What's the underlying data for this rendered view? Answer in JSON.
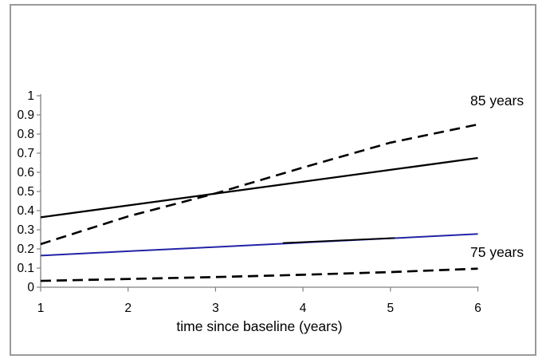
{
  "figure": {
    "background": "#ffffff",
    "border_color": "#9a9a9a",
    "axis_color": "#808080",
    "accent_blue": "#2323a7"
  },
  "chart_data": {
    "type": "line",
    "title": "",
    "xlabel": "time since baseline (years)",
    "ylabel": "",
    "x_range": [
      1,
      6
    ],
    "y_range": [
      0,
      1
    ],
    "grid": false,
    "legend_position": "none (direct line labels at right)",
    "x_ticks": [
      1,
      2,
      3,
      4,
      5,
      6
    ],
    "x_tick_labels": [
      "1",
      "2",
      "3",
      "4",
      "5",
      "6"
    ],
    "y_ticks": [
      0,
      0.1,
      0.2,
      0.3,
      0.4,
      0.5,
      0.6,
      0.7,
      0.8,
      0.9,
      1
    ],
    "y_tick_labels": [
      "0",
      "0.1",
      "0.2",
      "0.3",
      "0.4",
      "0.5",
      "0.6",
      "0.7",
      "0.8",
      "0.9",
      "1"
    ],
    "series": [
      {
        "name": "85 years - dashed",
        "style": "dashed",
        "color": "#000000",
        "width": 2.6,
        "dash": "13 7.5",
        "x": [
          1,
          2,
          3,
          4,
          5,
          6
        ],
        "values": [
          0.225,
          0.37,
          0.49,
          0.625,
          0.755,
          0.85
        ]
      },
      {
        "name": "85 years - solid",
        "style": "solid",
        "color": "#000000",
        "width": 2.3,
        "dash": "",
        "x": [
          1,
          2,
          3,
          4,
          5,
          6
        ],
        "values": [
          0.365,
          0.427,
          0.489,
          0.551,
          0.613,
          0.675
        ]
      },
      {
        "name": "75 years - dashed",
        "style": "dashed",
        "color": "#000000",
        "width": 2.7,
        "dash": "13 7",
        "x": [
          1,
          2,
          3,
          4,
          5,
          6
        ],
        "values": [
          0.033,
          0.043,
          0.053,
          0.065,
          0.079,
          0.097
        ]
      },
      {
        "name": "75 years - solid (blue)",
        "style": "solid",
        "color": "#2323a7",
        "width": 2,
        "dash": "",
        "x": [
          1,
          2,
          3,
          4,
          5,
          6
        ],
        "values": [
          0.165,
          0.188,
          0.21,
          0.233,
          0.255,
          0.278
        ]
      },
      {
        "name": "75 years - solid black segment (overlaps blue line mid-section)",
        "style": "solid",
        "color": "#000000",
        "width": 1.8,
        "dash": "",
        "x": [
          3.77,
          5.05
        ],
        "values": [
          0.231,
          0.257
        ]
      }
    ],
    "annotations": [
      {
        "text": "85 years"
      },
      {
        "text": "75 years"
      }
    ]
  }
}
